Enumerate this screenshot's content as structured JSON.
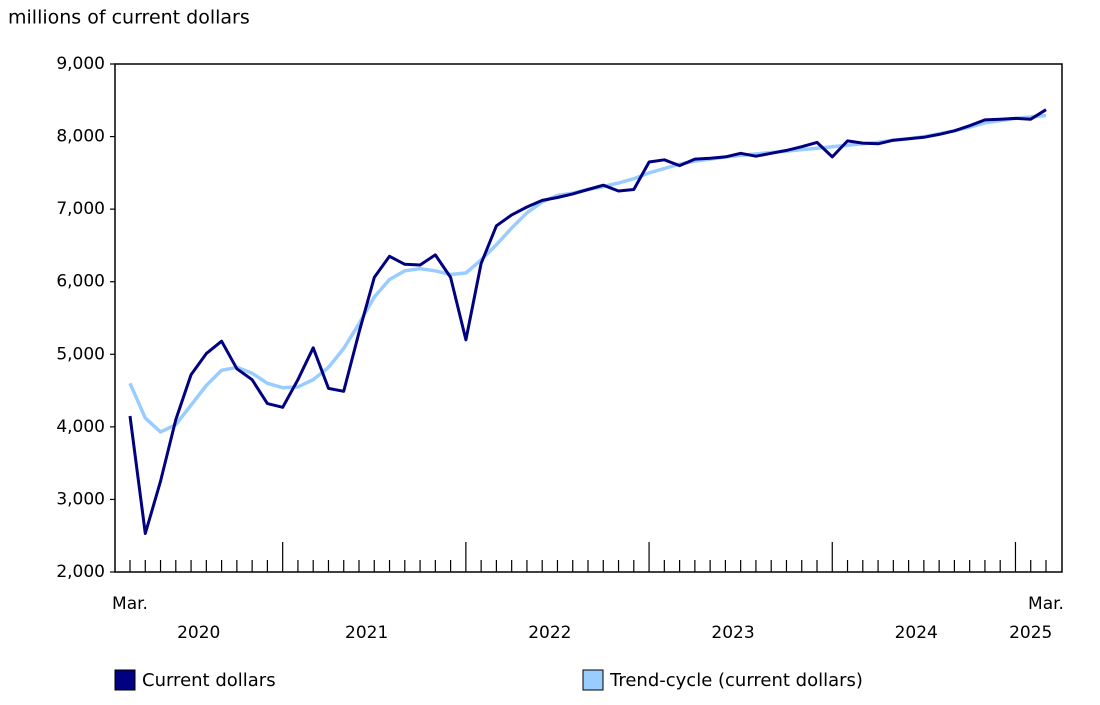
{
  "chart_data": {
    "type": "line",
    "y_axis_label": "millions of current dollars",
    "x": [
      "2020-03",
      "2020-04",
      "2020-05",
      "2020-06",
      "2020-07",
      "2020-08",
      "2020-09",
      "2020-10",
      "2020-11",
      "2020-12",
      "2021-01",
      "2021-02",
      "2021-03",
      "2021-04",
      "2021-05",
      "2021-06",
      "2021-07",
      "2021-08",
      "2021-09",
      "2021-10",
      "2021-11",
      "2021-12",
      "2022-01",
      "2022-02",
      "2022-03",
      "2022-04",
      "2022-05",
      "2022-06",
      "2022-07",
      "2022-08",
      "2022-09",
      "2022-10",
      "2022-11",
      "2022-12",
      "2023-01",
      "2023-02",
      "2023-03",
      "2023-04",
      "2023-05",
      "2023-06",
      "2023-07",
      "2023-08",
      "2023-09",
      "2023-10",
      "2023-11",
      "2023-12",
      "2024-01",
      "2024-02",
      "2024-03",
      "2024-04",
      "2024-05",
      "2024-06",
      "2024-07",
      "2024-08",
      "2024-09",
      "2024-10",
      "2024-11",
      "2024-12",
      "2025-01",
      "2025-02",
      "2025-03"
    ],
    "xtick_labels": [
      {
        "value": "2020-03",
        "label": "Mar."
      },
      {
        "value": "2025-03",
        "label": "Mar."
      }
    ],
    "year_labels": [
      "2020",
      "2021",
      "2022",
      "2023",
      "2024",
      "2025"
    ],
    "series": [
      {
        "name": "Current dollars",
        "color": "#000080",
        "values": [
          4150,
          2530,
          3250,
          4100,
          4720,
          5010,
          5180,
          4800,
          4650,
          4320,
          4270,
          4650,
          5090,
          4530,
          4490,
          5300,
          6060,
          6350,
          6240,
          6230,
          6370,
          6060,
          5200,
          6250,
          6770,
          6920,
          7030,
          7120,
          7160,
          7210,
          7270,
          7330,
          7250,
          7270,
          7650,
          7680,
          7600,
          7690,
          7700,
          7720,
          7770,
          7730,
          7770,
          7810,
          7860,
          7920,
          7720,
          7940,
          7910,
          7900,
          7950,
          7970,
          7990,
          8030,
          8080,
          8150,
          8230,
          8240,
          8250,
          8240,
          8370
        ]
      },
      {
        "name": "Trend-cycle (current dollars)",
        "color": "#99ccff",
        "values": [
          4600,
          4120,
          3930,
          4030,
          4300,
          4570,
          4780,
          4820,
          4740,
          4600,
          4540,
          4550,
          4650,
          4820,
          5080,
          5420,
          5790,
          6030,
          6150,
          6180,
          6150,
          6100,
          6120,
          6300,
          6510,
          6740,
          6950,
          7100,
          7190,
          7220,
          7270,
          7310,
          7360,
          7420,
          7500,
          7560,
          7620,
          7660,
          7690,
          7720,
          7740,
          7760,
          7780,
          7800,
          7820,
          7840,
          7860,
          7880,
          7900,
          7920,
          7950,
          7970,
          8000,
          8040,
          8080,
          8130,
          8190,
          8220,
          8250,
          8270,
          8290
        ]
      }
    ],
    "ylim": [
      2000,
      9000
    ],
    "yticks": [
      {
        "value": 2000,
        "label": "2,000"
      },
      {
        "value": 3000,
        "label": "3,000"
      },
      {
        "value": 4000,
        "label": "4,000"
      },
      {
        "value": 5000,
        "label": "5,000"
      },
      {
        "value": 6000,
        "label": "6,000"
      },
      {
        "value": 7000,
        "label": "7,000"
      },
      {
        "value": 8000,
        "label": "8,000"
      },
      {
        "value": 9000,
        "label": "9,000"
      }
    ],
    "legend": "bottom"
  }
}
